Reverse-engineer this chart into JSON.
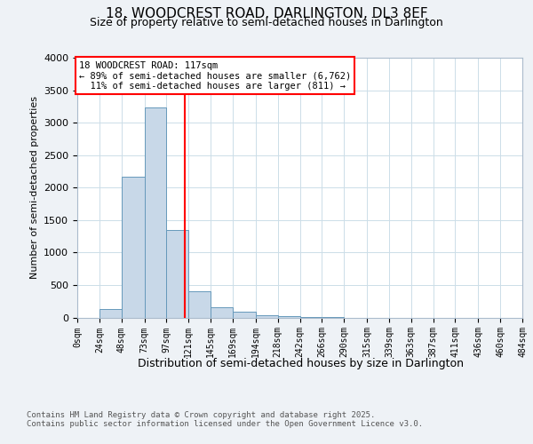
{
  "title1": "18, WOODCREST ROAD, DARLINGTON, DL3 8EF",
  "title2": "Size of property relative to semi-detached houses in Darlington",
  "xlabel": "Distribution of semi-detached houses by size in Darlington",
  "ylabel": "Number of semi-detached properties",
  "bin_edges": [
    0,
    24,
    48,
    73,
    97,
    121,
    145,
    169,
    194,
    218,
    242,
    266,
    290,
    315,
    339,
    363,
    387,
    411,
    436,
    460,
    484
  ],
  "bar_heights": [
    0,
    130,
    2170,
    3230,
    1350,
    400,
    160,
    90,
    40,
    20,
    5,
    3,
    0,
    0,
    0,
    0,
    0,
    0,
    0,
    0
  ],
  "bar_color": "#c8d8e8",
  "bar_edge_color": "#6699bb",
  "red_line_x": 117,
  "annotation_text": "18 WOODCREST ROAD: 117sqm\n← 89% of semi-detached houses are smaller (6,762)\n  11% of semi-detached houses are larger (811) →",
  "annotation_box_color": "white",
  "annotation_box_edge": "red",
  "footer_text": "Contains HM Land Registry data © Crown copyright and database right 2025.\nContains public sector information licensed under the Open Government Licence v3.0.",
  "ylim": [
    0,
    4000
  ],
  "yticks": [
    0,
    500,
    1000,
    1500,
    2000,
    2500,
    3000,
    3500,
    4000
  ],
  "background_color": "#eef2f6",
  "plot_background": "white",
  "grid_color": "#ccdde8"
}
